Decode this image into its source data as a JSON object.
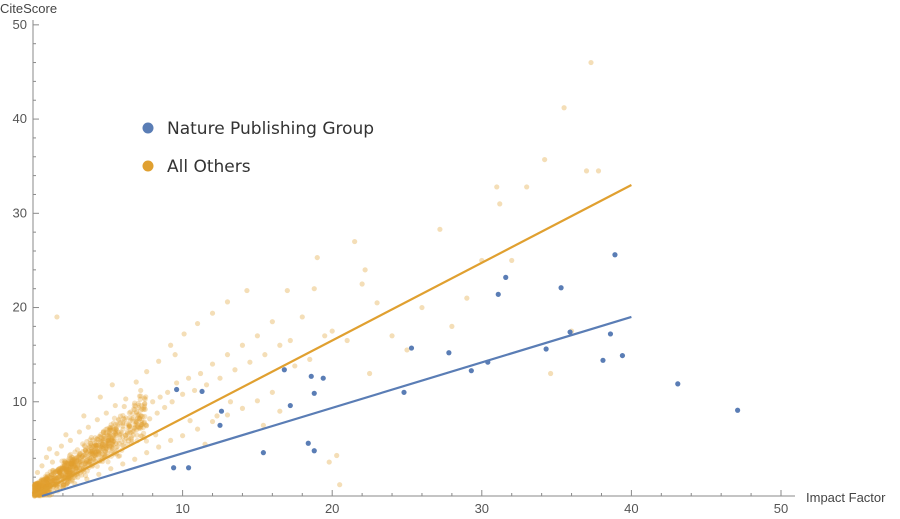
{
  "chart_data": {
    "type": "scatter",
    "xlabel": "Impact Factor",
    "ylabel": "CiteScore",
    "xlim": [
      0,
      50
    ],
    "ylim": [
      0,
      52
    ],
    "x_ticks": [
      10,
      20,
      30,
      40,
      50
    ],
    "y_ticks": [
      10,
      20,
      30,
      40,
      50
    ],
    "legend": {
      "placement": "top-left"
    },
    "series": [
      {
        "name": "All Others",
        "color": "#e0a030",
        "opacity": 0.35,
        "points": [
          [
            0.5,
            0.6
          ],
          [
            0.8,
            1.0
          ],
          [
            1.0,
            0.8
          ],
          [
            1.2,
            1.5
          ],
          [
            1.4,
            1.2
          ],
          [
            1.5,
            2.0
          ],
          [
            1.7,
            1.6
          ],
          [
            1.8,
            2.4
          ],
          [
            2.0,
            1.9
          ],
          [
            2.1,
            2.8
          ],
          [
            2.3,
            2.2
          ],
          [
            2.4,
            3.1
          ],
          [
            2.6,
            2.5
          ],
          [
            2.7,
            3.4
          ],
          [
            2.9,
            2.9
          ],
          [
            3.0,
            3.8
          ],
          [
            3.2,
            3.3
          ],
          [
            3.3,
            4.2
          ],
          [
            3.5,
            3.5
          ],
          [
            3.6,
            4.6
          ],
          [
            3.8,
            4.0
          ],
          [
            3.9,
            5.0
          ],
          [
            4.1,
            4.3
          ],
          [
            4.2,
            5.4
          ],
          [
            4.4,
            4.7
          ],
          [
            4.5,
            5.8
          ],
          [
            4.7,
            5.0
          ],
          [
            4.8,
            6.1
          ],
          [
            5.0,
            5.4
          ],
          [
            5.2,
            6.5
          ],
          [
            5.4,
            5.8
          ],
          [
            5.6,
            7.0
          ],
          [
            5.8,
            6.2
          ],
          [
            6.0,
            7.4
          ],
          [
            6.3,
            6.6
          ],
          [
            6.5,
            8.0
          ],
          [
            6.8,
            7.2
          ],
          [
            7.0,
            8.6
          ],
          [
            7.3,
            7.6
          ],
          [
            7.5,
            9.2
          ],
          [
            7.8,
            8.2
          ],
          [
            8.0,
            10.0
          ],
          [
            8.3,
            8.8
          ],
          [
            8.5,
            10.5
          ],
          [
            8.8,
            9.4
          ],
          [
            9.0,
            11.0
          ],
          [
            9.3,
            10.0
          ],
          [
            9.6,
            12.0
          ],
          [
            10.0,
            10.8
          ],
          [
            10.4,
            12.5
          ],
          [
            10.8,
            11.2
          ],
          [
            11.2,
            13.0
          ],
          [
            11.6,
            11.8
          ],
          [
            12.0,
            14.0
          ],
          [
            12.5,
            12.5
          ],
          [
            13.0,
            15.0
          ],
          [
            13.5,
            13.4
          ],
          [
            14.0,
            16.0
          ],
          [
            14.5,
            14.2
          ],
          [
            15.0,
            17.0
          ],
          [
            15.5,
            15.0
          ],
          [
            16.0,
            18.5
          ],
          [
            16.5,
            16.0
          ],
          [
            17.0,
            21.8
          ],
          [
            17.5,
            13.8
          ],
          [
            18.0,
            19.0
          ],
          [
            18.5,
            14.5
          ],
          [
            19.0,
            25.3
          ],
          [
            19.5,
            17.0
          ],
          [
            20.0,
            17.5
          ],
          [
            20.3,
            4.3
          ],
          [
            20.5,
            1.2
          ],
          [
            21.0,
            16.5
          ],
          [
            21.5,
            27.0
          ],
          [
            22.0,
            22.5
          ],
          [
            22.5,
            13.0
          ],
          [
            23.0,
            20.5
          ],
          [
            24.0,
            17.0
          ],
          [
            25.0,
            15.5
          ],
          [
            26.0,
            20.0
          ],
          [
            27.2,
            28.3
          ],
          [
            28.0,
            18.0
          ],
          [
            29.0,
            21.0
          ],
          [
            30.0,
            25.0
          ],
          [
            31.0,
            32.8
          ],
          [
            31.2,
            31.0
          ],
          [
            32.0,
            25.0
          ],
          [
            33.0,
            32.8
          ],
          [
            34.2,
            35.7
          ],
          [
            34.6,
            13.0
          ],
          [
            35.5,
            41.2
          ],
          [
            36.0,
            17.5
          ],
          [
            37.0,
            34.5
          ],
          [
            37.3,
            46.0
          ],
          [
            37.8,
            34.5
          ],
          [
            1.6,
            19.0
          ],
          [
            2.2,
            6.5
          ],
          [
            3.4,
            8.5
          ],
          [
            4.5,
            10.5
          ],
          [
            5.3,
            11.8
          ],
          [
            6.1,
            9.5
          ],
          [
            7.2,
            11.2
          ],
          [
            8.2,
            6.5
          ],
          [
            9.5,
            15.0
          ],
          [
            10.5,
            8.0
          ],
          [
            11.5,
            5.5
          ],
          [
            12.3,
            8.5
          ],
          [
            13.2,
            10.0
          ],
          [
            14.3,
            21.8
          ],
          [
            15.4,
            7.5
          ],
          [
            16.5,
            9.0
          ],
          [
            17.2,
            16.5
          ],
          [
            18.8,
            22.0
          ],
          [
            19.8,
            3.6
          ],
          [
            22.2,
            24.0
          ],
          [
            0.3,
            2.5
          ],
          [
            0.6,
            3.2
          ],
          [
            0.9,
            4.1
          ],
          [
            1.1,
            5.0
          ],
          [
            1.3,
            3.6
          ],
          [
            1.6,
            4.5
          ],
          [
            1.9,
            5.3
          ],
          [
            2.5,
            5.9
          ],
          [
            3.1,
            6.8
          ],
          [
            3.7,
            7.3
          ],
          [
            4.3,
            8.1
          ],
          [
            4.9,
            8.8
          ],
          [
            5.5,
            9.6
          ],
          [
            6.2,
            10.3
          ],
          [
            6.9,
            12.1
          ],
          [
            7.6,
            13.2
          ],
          [
            8.4,
            14.3
          ],
          [
            9.2,
            16.0
          ],
          [
            10.1,
            17.2
          ],
          [
            11.0,
            18.3
          ],
          [
            12.0,
            19.4
          ],
          [
            13.0,
            20.6
          ],
          [
            2.0,
            0.9
          ],
          [
            2.8,
            1.3
          ],
          [
            3.6,
            1.8
          ],
          [
            4.4,
            2.3
          ],
          [
            5.2,
            2.9
          ],
          [
            6.0,
            3.4
          ],
          [
            6.8,
            3.9
          ],
          [
            7.6,
            4.6
          ],
          [
            8.4,
            5.2
          ],
          [
            9.2,
            5.9
          ],
          [
            10.0,
            6.4
          ],
          [
            11.0,
            7.1
          ],
          [
            12.0,
            7.9
          ],
          [
            13.0,
            8.6
          ],
          [
            14.0,
            9.3
          ],
          [
            15.0,
            10.1
          ],
          [
            16.0,
            11.0
          ],
          [
            1.0,
            0.3
          ],
          [
            1.4,
            0.5
          ],
          [
            1.8,
            0.9
          ],
          [
            2.2,
            1.2
          ],
          [
            2.6,
            1.6
          ],
          [
            3.0,
            2.0
          ],
          [
            0.4,
            1.3
          ],
          [
            0.7,
            1.7
          ],
          [
            1.1,
            2.1
          ],
          [
            1.5,
            2.6
          ],
          [
            1.9,
            3.0
          ],
          [
            2.3,
            3.5
          ],
          [
            2.7,
            3.9
          ],
          [
            3.1,
            4.4
          ],
          [
            3.5,
            4.9
          ],
          [
            3.9,
            5.4
          ]
        ]
      },
      {
        "name": "Nature Publishing Group",
        "color": "#5a7db5",
        "opacity": 1,
        "points": [
          [
            9.4,
            3.0
          ],
          [
            9.6,
            11.3
          ],
          [
            10.4,
            3.0
          ],
          [
            11.3,
            11.1
          ],
          [
            12.5,
            7.5
          ],
          [
            12.6,
            9.0
          ],
          [
            15.4,
            4.6
          ],
          [
            16.8,
            13.4
          ],
          [
            17.2,
            9.6
          ],
          [
            18.4,
            5.6
          ],
          [
            18.6,
            12.7
          ],
          [
            18.8,
            10.9
          ],
          [
            18.8,
            4.8
          ],
          [
            19.4,
            12.5
          ],
          [
            24.8,
            11.0
          ],
          [
            25.3,
            15.7
          ],
          [
            27.8,
            15.2
          ],
          [
            29.3,
            13.3
          ],
          [
            30.4,
            14.2
          ],
          [
            31.1,
            21.4
          ],
          [
            31.6,
            23.2
          ],
          [
            34.3,
            15.6
          ],
          [
            35.3,
            22.1
          ],
          [
            35.9,
            17.4
          ],
          [
            38.1,
            14.4
          ],
          [
            38.6,
            17.2
          ],
          [
            38.9,
            25.6
          ],
          [
            39.4,
            14.9
          ],
          [
            43.1,
            11.9
          ],
          [
            47.1,
            9.1
          ]
        ]
      }
    ],
    "fit_lines": [
      {
        "name": "All Others",
        "color": "#e0a030",
        "x": [
          0,
          40
        ],
        "y": [
          0,
          33
        ]
      },
      {
        "name": "Nature Publishing Group",
        "color": "#5a7db5",
        "x": [
          0.6,
          40
        ],
        "y": [
          0,
          19
        ]
      }
    ],
    "legend_entries": [
      "Nature Publishing Group",
      "All Others"
    ]
  }
}
